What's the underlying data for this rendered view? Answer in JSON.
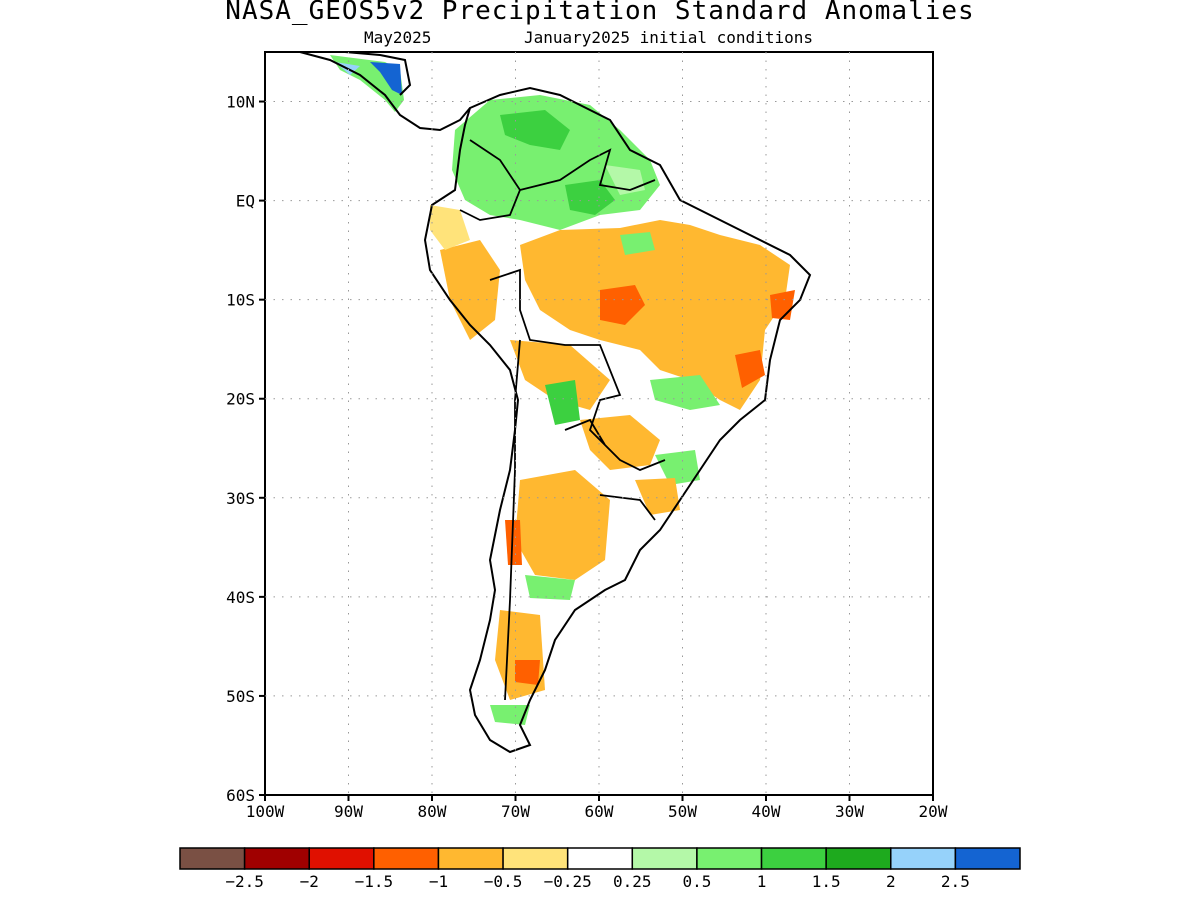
{
  "title": "NASA_GEOS5v2 Precipitation Standard Anomalies",
  "subtitle_left": "May2025",
  "subtitle_right": "January2025 initial conditions",
  "map": {
    "lon_range": [
      -100,
      -20
    ],
    "lat_range": [
      -60,
      15
    ],
    "lat_ticks": [
      {
        "value": 10,
        "label": "10N"
      },
      {
        "value": 0,
        "label": "EQ"
      },
      {
        "value": -10,
        "label": "10S"
      },
      {
        "value": -20,
        "label": "20S"
      },
      {
        "value": -30,
        "label": "30S"
      },
      {
        "value": -40,
        "label": "40S"
      },
      {
        "value": -50,
        "label": "50S"
      },
      {
        "value": -60,
        "label": "60S"
      }
    ],
    "lon_ticks": [
      {
        "value": -100,
        "label": "100W"
      },
      {
        "value": -90,
        "label": "90W"
      },
      {
        "value": -80,
        "label": "80W"
      },
      {
        "value": -70,
        "label": "70W"
      },
      {
        "value": -60,
        "label": "60W"
      },
      {
        "value": -50,
        "label": "50W"
      },
      {
        "value": -40,
        "label": "40W"
      },
      {
        "value": -30,
        "label": "30W"
      },
      {
        "value": -20,
        "label": "20W"
      }
    ],
    "grid": true
  },
  "colorbar": {
    "colors": [
      "#7a5044",
      "#a00000",
      "#e01000",
      "#ff6000",
      "#ffb830",
      "#ffe37a",
      "#ffffff",
      "#b4f8a8",
      "#78f070",
      "#3cd040",
      "#1eaa1e",
      "#96d2fa",
      "#1464d2"
    ],
    "labels": [
      "−2.5",
      "−2",
      "−1.5",
      "−1",
      "−0.5",
      "−0.25",
      "0.25",
      "0.5",
      "1",
      "1.5",
      "2",
      "2.5"
    ]
  }
}
